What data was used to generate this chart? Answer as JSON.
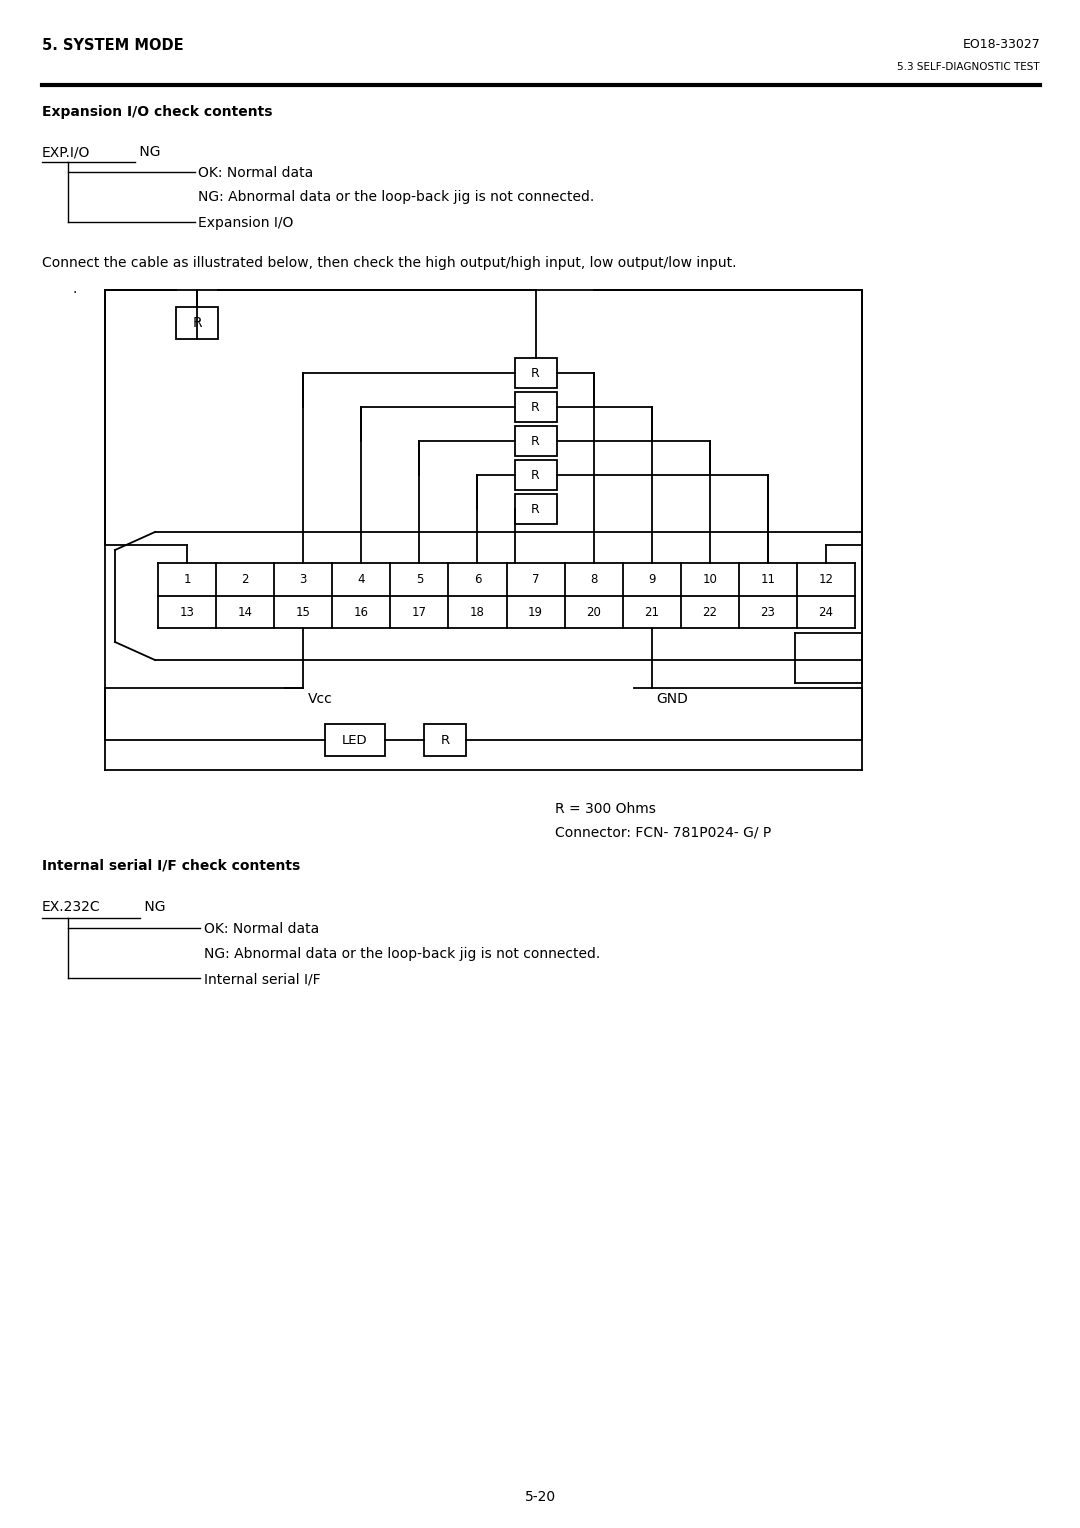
{
  "title_left": "5. SYSTEM MODE",
  "title_right": "EO18-33027",
  "subtitle_right": "5.3 SELF-DIAGNOSTIC TEST",
  "section1_title": "Expansion I/O check contents",
  "ok_label": "OK: Normal data",
  "ng_label": "NG: Abnormal data or the loop-back jig is not connected.",
  "expansion_label": "Expansion I/O",
  "connect_text": "Connect the cable as illustrated below, then check the high output/high input, low output/low input.",
  "r_note": "R = 300 Ohms",
  "connector_note": "Connector: FCN- 781P024- G/ P",
  "section2_title": "Internal serial I/F check contents",
  "ok_label2": "OK: Normal data",
  "ng_label2": "NG: Abnormal data or the loop-back jig is not connected.",
  "serial_label": "Internal serial I/F",
  "page_number": "5-20",
  "bg_color": "#ffffff",
  "line_color": "#000000",
  "text_color": "#000000"
}
